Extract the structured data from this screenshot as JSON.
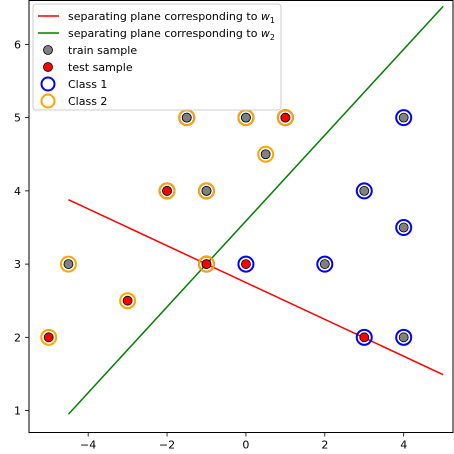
{
  "chart_data": {
    "type": "scatter",
    "xlim": [
      -5.5,
      5.25
    ],
    "ylim": [
      0.7,
      6.6
    ],
    "xticks": [
      -4,
      -2,
      0,
      2,
      4
    ],
    "xtick_labels": [
      "−4",
      "−2",
      "0",
      "2",
      "4"
    ],
    "yticks": [
      1,
      2,
      3,
      4,
      5,
      6
    ],
    "ytick_labels": [
      "1",
      "2",
      "3",
      "4",
      "5",
      "6"
    ],
    "grid": false,
    "legend_position": "upper-left",
    "colors": {
      "plane_w1": "#ff0000",
      "plane_w2": "#008000",
      "train_fill": "#808080",
      "test_fill": "#ff0000",
      "class1_edge": "#0000ff",
      "class2_edge": "#ffa500"
    },
    "lines": [
      {
        "name": "separating plane corresponding to w1",
        "legend_label": "separating plane corresponding to",
        "legend_sub": "w",
        "legend_subscript": "1",
        "color": "#ff0000",
        "x": [
          -4.5,
          5.0
        ],
        "y": [
          3.88,
          1.49
        ]
      },
      {
        "name": "separating plane corresponding to w2",
        "legend_label": "separating plane corresponding to",
        "legend_sub": "w",
        "legend_subscript": "2",
        "color": "#008000",
        "x": [
          -4.5,
          5.0
        ],
        "y": [
          0.95,
          6.52
        ]
      }
    ],
    "legend": [
      {
        "kind": "line",
        "color": "#ff0000",
        "label": "separating plane corresponding to",
        "math": "w",
        "sub": "1"
      },
      {
        "kind": "line",
        "color": "#008000",
        "label": "separating plane corresponding to",
        "math": "w",
        "sub": "2"
      },
      {
        "kind": "dot",
        "fill": "#808080",
        "label": "train sample"
      },
      {
        "kind": "dot",
        "fill": "#ff0000",
        "label": "test sample"
      },
      {
        "kind": "ring",
        "edge": "#0000ff",
        "label": "Class 1"
      },
      {
        "kind": "ring",
        "edge": "#ffa500",
        "label": "Class 2"
      }
    ],
    "points": [
      {
        "x": -5.0,
        "y": 2.0,
        "sample": "test",
        "class": 2
      },
      {
        "x": -4.5,
        "y": 3.0,
        "sample": "train",
        "class": 2
      },
      {
        "x": -3.0,
        "y": 2.5,
        "sample": "test",
        "class": 2
      },
      {
        "x": -2.0,
        "y": 4.0,
        "sample": "test",
        "class": 1
      },
      {
        "x": -2.0,
        "y": 4.0,
        "sample": "test",
        "class": 2
      },
      {
        "x": -1.5,
        "y": 5.0,
        "sample": "train",
        "class": 1
      },
      {
        "x": -1.5,
        "y": 5.0,
        "sample": "train",
        "class": 2
      },
      {
        "x": -1.0,
        "y": 4.0,
        "sample": "train",
        "class": 1
      },
      {
        "x": -1.0,
        "y": 4.0,
        "sample": "train",
        "class": 2
      },
      {
        "x": -1.0,
        "y": 3.0,
        "sample": "train",
        "class": 1
      },
      {
        "x": -1.0,
        "y": 3.0,
        "sample": "test",
        "class": 2
      },
      {
        "x": 0.0,
        "y": 5.0,
        "sample": "train",
        "class": 1
      },
      {
        "x": 0.0,
        "y": 5.0,
        "sample": "train",
        "class": 2
      },
      {
        "x": 0.0,
        "y": 3.0,
        "sample": "test",
        "class": 1
      },
      {
        "x": 0.5,
        "y": 4.5,
        "sample": "train",
        "class": 2
      },
      {
        "x": 1.0,
        "y": 5.0,
        "sample": "test",
        "class": 1
      },
      {
        "x": 1.0,
        "y": 5.0,
        "sample": "test",
        "class": 2
      },
      {
        "x": 2.0,
        "y": 3.0,
        "sample": "train",
        "class": 1
      },
      {
        "x": 3.0,
        "y": 4.0,
        "sample": "train",
        "class": 1
      },
      {
        "x": 3.0,
        "y": 2.0,
        "sample": "test",
        "class": 1
      },
      {
        "x": 4.0,
        "y": 5.0,
        "sample": "train",
        "class": 1
      },
      {
        "x": 4.0,
        "y": 3.5,
        "sample": "train",
        "class": 1
      },
      {
        "x": 4.0,
        "y": 2.0,
        "sample": "train",
        "class": 1
      }
    ]
  }
}
